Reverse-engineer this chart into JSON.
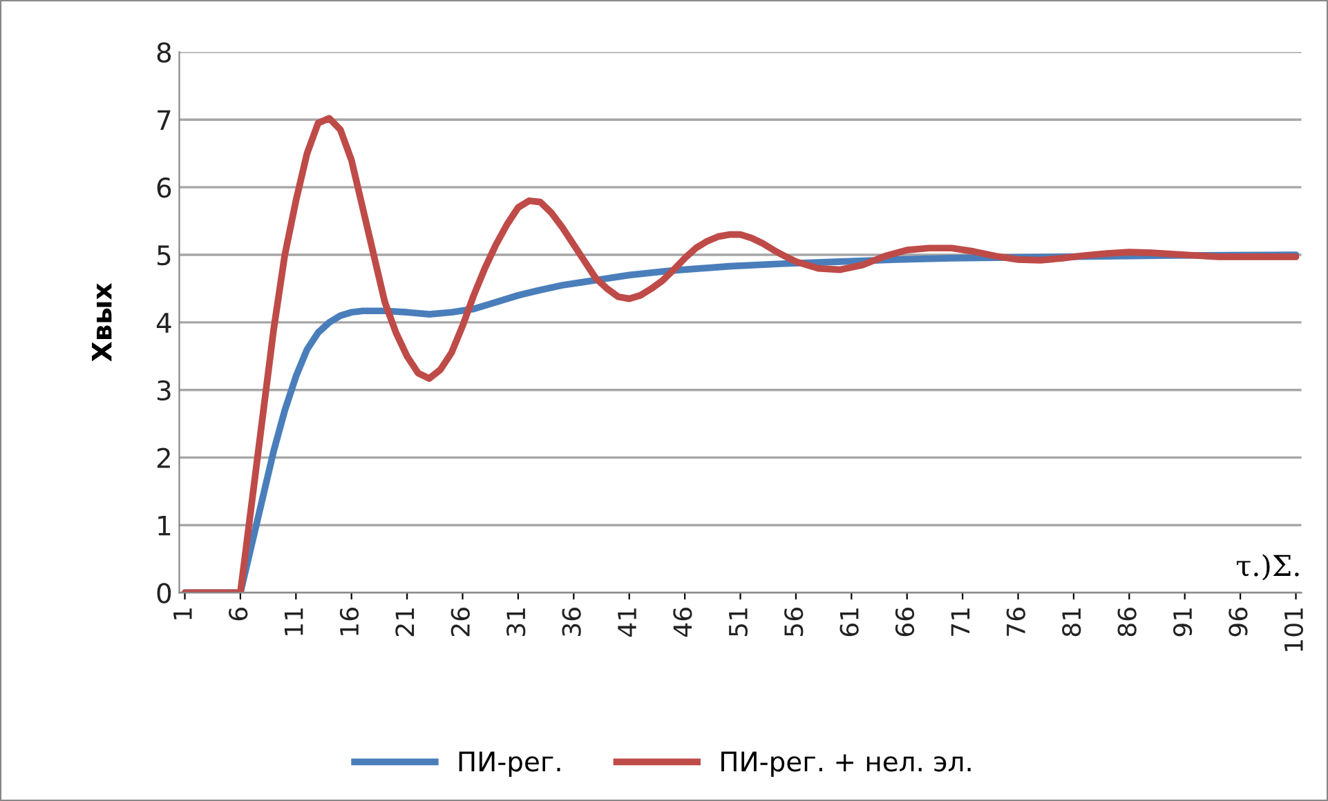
{
  "chart_data": {
    "type": "line",
    "ylabel": "Хвых",
    "xlim": [
      0.5,
      101.5
    ],
    "xticks": [
      1,
      6,
      11,
      16,
      21,
      26,
      31,
      36,
      41,
      46,
      51,
      56,
      61,
      66,
      71,
      76,
      81,
      86,
      91,
      96,
      101
    ],
    "ylim": [
      0,
      8
    ],
    "yticks": [
      0,
      1,
      2,
      3,
      4,
      5,
      6,
      7,
      8
    ],
    "grid": "y",
    "legend": "bottom",
    "marker": "none",
    "line_style": "solid",
    "annotations": [
      "τ.)Σ."
    ],
    "series": [
      {
        "name": "ПИ-рег.",
        "color": "#4a7ebb",
        "x": [
          1,
          6,
          7,
          8,
          9,
          10,
          11,
          12,
          13,
          14,
          15,
          16,
          17,
          19,
          21,
          23,
          25,
          27,
          29,
          31,
          33,
          35,
          37,
          39,
          41,
          45,
          50,
          55,
          60,
          65,
          70,
          80,
          90,
          101
        ],
        "values": [
          0,
          0,
          0.7,
          1.4,
          2.1,
          2.7,
          3.2,
          3.6,
          3.85,
          4.0,
          4.1,
          4.15,
          4.17,
          4.17,
          4.15,
          4.12,
          4.15,
          4.2,
          4.3,
          4.4,
          4.48,
          4.55,
          4.6,
          4.65,
          4.7,
          4.77,
          4.83,
          4.87,
          4.9,
          4.93,
          4.95,
          4.97,
          4.99,
          5.0
        ]
      },
      {
        "name": "ПИ-рег. + нел. эл.",
        "color": "#be4b48",
        "x": [
          1,
          6,
          7,
          8,
          9,
          10,
          11,
          12,
          13,
          14,
          15,
          16,
          17,
          18,
          19,
          20,
          21,
          22,
          23,
          24,
          25,
          26,
          27,
          28,
          29,
          30,
          31,
          32,
          33,
          34,
          35,
          36,
          37,
          38,
          39,
          40,
          41,
          42,
          43,
          44,
          45,
          46,
          47,
          48,
          49,
          50,
          51,
          52,
          53,
          54,
          55,
          56,
          58,
          60,
          62,
          64,
          66,
          68,
          70,
          72,
          74,
          76,
          78,
          80,
          82,
          84,
          86,
          88,
          90,
          92,
          94,
          96,
          101
        ],
        "values": [
          0,
          0,
          1.3,
          2.6,
          3.9,
          5.0,
          5.8,
          6.5,
          6.95,
          7.02,
          6.85,
          6.4,
          5.7,
          5.0,
          4.3,
          3.85,
          3.5,
          3.25,
          3.17,
          3.3,
          3.55,
          3.95,
          4.4,
          4.8,
          5.15,
          5.45,
          5.7,
          5.8,
          5.78,
          5.62,
          5.4,
          5.15,
          4.9,
          4.65,
          4.5,
          4.38,
          4.35,
          4.4,
          4.5,
          4.62,
          4.78,
          4.95,
          5.1,
          5.2,
          5.27,
          5.3,
          5.3,
          5.25,
          5.17,
          5.07,
          4.98,
          4.9,
          4.8,
          4.78,
          4.85,
          4.98,
          5.07,
          5.1,
          5.1,
          5.05,
          4.98,
          4.93,
          4.92,
          4.95,
          4.99,
          5.02,
          5.04,
          5.03,
          5.01,
          4.99,
          4.97,
          4.97,
          4.97
        ]
      }
    ]
  }
}
